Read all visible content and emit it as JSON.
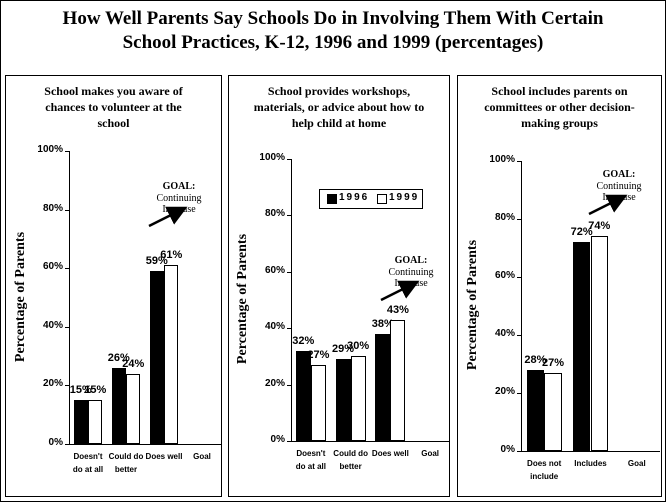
{
  "title": "How Well Parents Say Schools Do in Involving Them With Certain School Practices, K-12, 1996 and 1999 (percentages)",
  "chart_data": [
    {
      "type": "bar",
      "title": "School makes you aware of chances to volunteer at the school",
      "ylabel": "Percentage of Parents",
      "categories": [
        "Doesn't do at all",
        "Could do better",
        "Does well",
        "Goal"
      ],
      "series": [
        {
          "color": "#000000",
          "values": [
            15,
            26,
            59,
            null
          ],
          "value_labels": [
            "15%",
            "26%",
            "59%",
            null
          ]
        },
        {
          "color": "#ffffff",
          "values": [
            15,
            24,
            61,
            null
          ],
          "value_labels": [
            "15%",
            "24%",
            "61%",
            null
          ]
        }
      ],
      "annotations": [
        "GOAL:",
        "Continuing Increase"
      ],
      "ylim": [
        0,
        100
      ],
      "yticks": [
        {
          "value": 0,
          "label": "0%"
        },
        {
          "value": 20,
          "label": "20%"
        },
        {
          "value": 40,
          "label": "40%"
        },
        {
          "value": 60,
          "label": "60%"
        },
        {
          "value": 80,
          "label": "80%"
        },
        {
          "value": 100,
          "label": "100%"
        }
      ]
    },
    {
      "type": "bar",
      "title": "School provides workshops, materials, or advice about how to help child at home",
      "ylabel": "Percentage of Parents",
      "categories": [
        "Doesn't do at all",
        "Could do better",
        "Does well",
        "Goal"
      ],
      "series": [
        {
          "name": "1996",
          "color": "#000000",
          "values": [
            32,
            29,
            38,
            null
          ],
          "value_labels": [
            "32%",
            "29%",
            "38%",
            null
          ]
        },
        {
          "name": "1999",
          "color": "#ffffff",
          "values": [
            27,
            30,
            43,
            null
          ],
          "value_labels": [
            "27%",
            "30%",
            "43%",
            null
          ]
        }
      ],
      "legend": "top",
      "annotations": [
        "GOAL:",
        "Continuing Increase"
      ],
      "ylim": [
        0,
        100
      ],
      "yticks": [
        {
          "value": 0,
          "label": "0%"
        },
        {
          "value": 20,
          "label": "20%"
        },
        {
          "value": 40,
          "label": "40%"
        },
        {
          "value": 60,
          "label": "60%"
        },
        {
          "value": 80,
          "label": "80%"
        },
        {
          "value": 100,
          "label": "100%"
        }
      ]
    },
    {
      "type": "bar",
      "title": "School includes parents on committees or other decision-making groups",
      "ylabel": "Percentage of Parents",
      "categories": [
        "Does not include",
        "Includes",
        "Goal"
      ],
      "series": [
        {
          "color": "#000000",
          "values": [
            28,
            72,
            null
          ],
          "value_labels": [
            "28%",
            "72%",
            null
          ]
        },
        {
          "color": "#ffffff",
          "values": [
            27,
            74,
            null
          ],
          "value_labels": [
            "27%",
            "74%",
            null
          ]
        }
      ],
      "annotations": [
        "GOAL:",
        "Continuing Increase"
      ],
      "ylim": [
        0,
        100
      ],
      "yticks": [
        {
          "value": 0,
          "label": "0%"
        },
        {
          "value": 20,
          "label": "20%"
        },
        {
          "value": 40,
          "label": "40%"
        },
        {
          "value": 60,
          "label": "60%"
        },
        {
          "value": 80,
          "label": "80%"
        },
        {
          "value": 100,
          "label": "100%"
        }
      ]
    }
  ]
}
